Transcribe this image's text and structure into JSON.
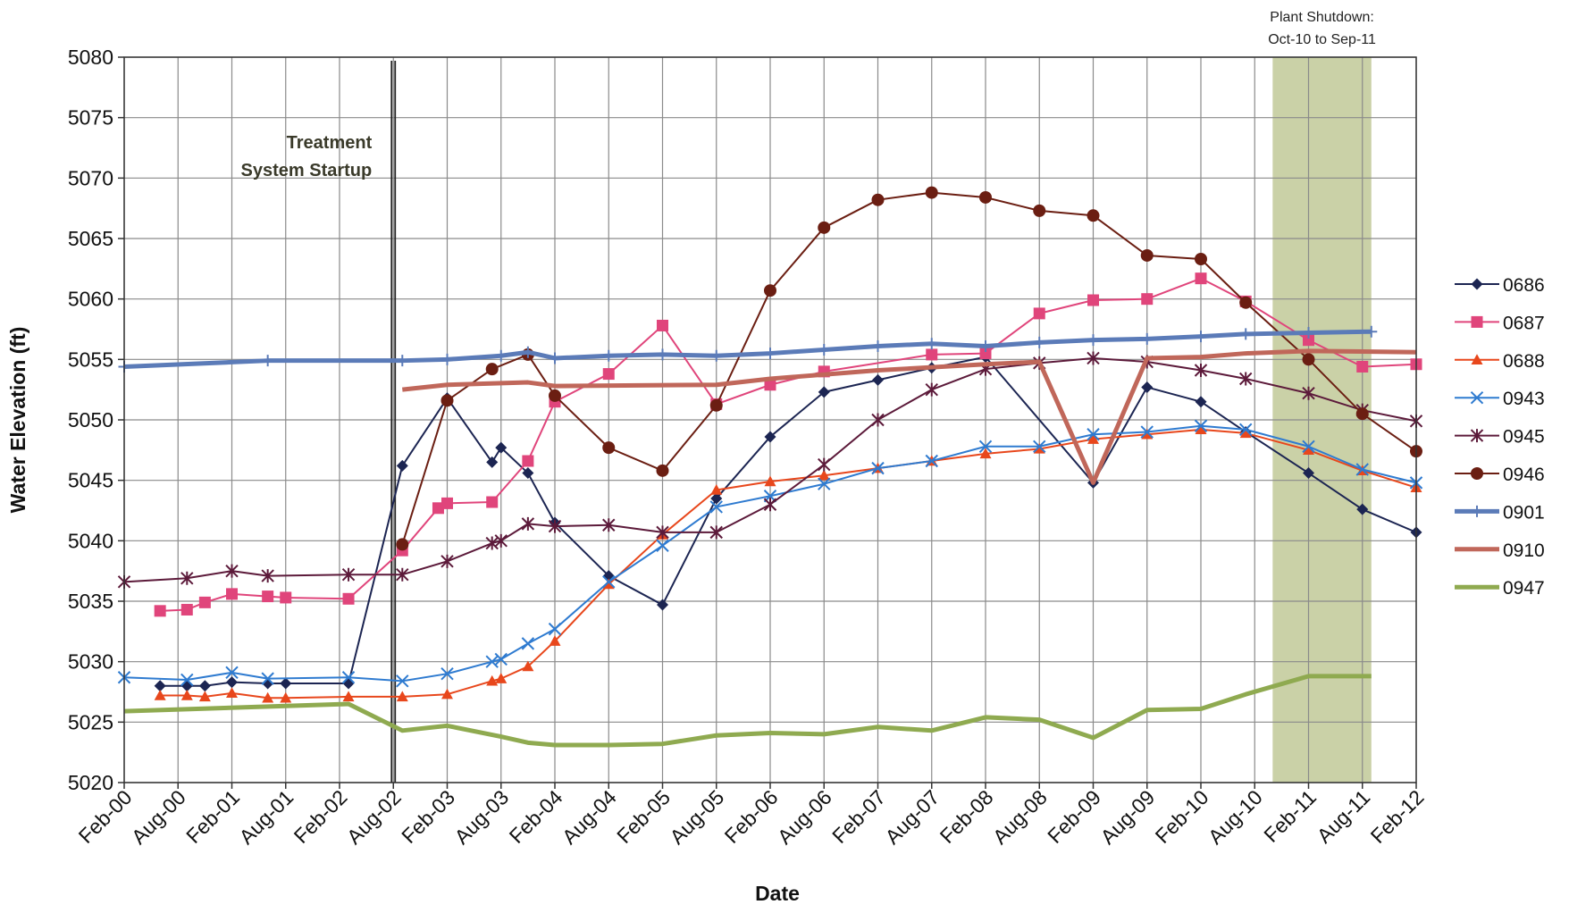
{
  "chart_data": {
    "type": "line",
    "x_label": "Date",
    "y_label": "Water Elevation (ft)",
    "xlim": [
      "2000-02",
      "2012-02"
    ],
    "ylim": [
      5020,
      5080
    ],
    "yticks": [
      5020,
      5025,
      5030,
      5035,
      5040,
      5045,
      5050,
      5055,
      5060,
      5065,
      5070,
      5075,
      5080
    ],
    "xticks": [
      {
        "value": "2000-02",
        "label": "Feb-00"
      },
      {
        "value": "2000-08",
        "label": "Aug-00"
      },
      {
        "value": "2001-02",
        "label": "Feb-01"
      },
      {
        "value": "2001-08",
        "label": "Aug-01"
      },
      {
        "value": "2002-02",
        "label": "Feb-02"
      },
      {
        "value": "2002-08",
        "label": "Aug-02"
      },
      {
        "value": "2003-02",
        "label": "Feb-03"
      },
      {
        "value": "2003-08",
        "label": "Aug-03"
      },
      {
        "value": "2004-02",
        "label": "Feb-04"
      },
      {
        "value": "2004-08",
        "label": "Aug-04"
      },
      {
        "value": "2005-02",
        "label": "Feb-05"
      },
      {
        "value": "2005-08",
        "label": "Aug-05"
      },
      {
        "value": "2006-02",
        "label": "Feb-06"
      },
      {
        "value": "2006-08",
        "label": "Aug-06"
      },
      {
        "value": "2007-02",
        "label": "Feb-07"
      },
      {
        "value": "2007-08",
        "label": "Aug-07"
      },
      {
        "value": "2008-02",
        "label": "Feb-08"
      },
      {
        "value": "2008-08",
        "label": "Aug-08"
      },
      {
        "value": "2009-02",
        "label": "Feb-09"
      },
      {
        "value": "2009-08",
        "label": "Aug-09"
      },
      {
        "value": "2010-02",
        "label": "Feb-10"
      },
      {
        "value": "2010-08",
        "label": "Aug-10"
      },
      {
        "value": "2011-02",
        "label": "Feb-11"
      },
      {
        "value": "2011-08",
        "label": "Aug-11"
      },
      {
        "value": "2012-02",
        "label": "Feb-12"
      }
    ],
    "grid": true,
    "legend": "right",
    "annotations": [
      {
        "x": "2002-08",
        "text": [
          "Treatment",
          "System Startup"
        ]
      }
    ],
    "shaded_region": {
      "x": [
        "2010-10",
        "2011-09"
      ],
      "text": [
        "Plant Shutdown:",
        "Oct-10 to Sep-11"
      ],
      "color": "#b8c28a"
    },
    "series": [
      {
        "name": "0686",
        "color": "#1c2552",
        "marker": "diamond",
        "width": 2,
        "x": [
          "2000-06",
          "2000-09",
          "2000-11",
          "2001-02",
          "2001-06",
          "2001-08",
          "2002-03",
          "2002-09",
          "2003-02",
          "2003-07",
          "2003-08",
          "2003-11",
          "2004-02",
          "2004-08",
          "2005-02",
          "2005-08",
          "2006-02",
          "2006-08",
          "2007-02",
          "2007-08",
          "2008-02",
          "2009-02",
          "2009-08",
          "2010-02",
          "2010-07",
          "2011-02",
          "2011-08",
          "2012-02"
        ],
        "values": [
          5028,
          5028,
          5028,
          5028.3,
          5028.2,
          5028.2,
          5028.2,
          5046.2,
          5051.8,
          5046.5,
          5047.7,
          5045.6,
          5041.5,
          5037.1,
          5034.7,
          5043.5,
          5048.6,
          5052.3,
          5053.3,
          5054.3,
          5055.2,
          5044.8,
          5052.7,
          5051.5,
          5049,
          5045.6,
          5042.6,
          5040.7
        ]
      },
      {
        "name": "0687",
        "color": "#e0457b",
        "marker": "square",
        "width": 2,
        "x": [
          "2000-06",
          "2000-09",
          "2000-11",
          "2001-02",
          "2001-06",
          "2001-08",
          "2002-03",
          "2002-09",
          "2003-01",
          "2003-02",
          "2003-07",
          "2003-11",
          "2004-02",
          "2004-08",
          "2005-02",
          "2005-08",
          "2006-02",
          "2006-08",
          "2007-08",
          "2008-02",
          "2008-08",
          "2009-02",
          "2009-08",
          "2010-02",
          "2010-07",
          "2011-02",
          "2011-08",
          "2012-02"
        ],
        "values": [
          5034.2,
          5034.3,
          5034.9,
          5035.6,
          5035.4,
          5035.3,
          5035.2,
          5039.2,
          5042.7,
          5043.1,
          5043.2,
          5046.6,
          5051.5,
          5053.8,
          5057.8,
          5051.3,
          5052.9,
          5054,
          5055.4,
          5055.5,
          5058.8,
          5059.9,
          5060,
          5061.7,
          5059.8,
          5056.6,
          5054.4,
          5054.6
        ]
      },
      {
        "name": "0688",
        "color": "#e8471c",
        "marker": "triangle",
        "width": 2,
        "x": [
          "2000-06",
          "2000-09",
          "2000-11",
          "2001-02",
          "2001-06",
          "2001-08",
          "2002-03",
          "2002-09",
          "2003-02",
          "2003-07",
          "2003-08",
          "2003-11",
          "2004-02",
          "2004-08",
          "2005-02",
          "2005-08",
          "2006-02",
          "2006-08",
          "2007-02",
          "2007-08",
          "2008-02",
          "2008-08",
          "2009-02",
          "2009-08",
          "2010-02",
          "2010-07",
          "2011-02",
          "2011-08",
          "2012-02"
        ],
        "values": [
          5027.2,
          5027.2,
          5027.1,
          5027.4,
          5027,
          5027,
          5027.1,
          5027.1,
          5027.3,
          5028.4,
          5028.6,
          5029.6,
          5031.7,
          5036.4,
          5040.5,
          5044.2,
          5044.9,
          5045.4,
          5046,
          5046.6,
          5047.2,
          5047.6,
          5048.4,
          5048.8,
          5049.2,
          5048.9,
          5047.5,
          5045.8,
          5044.4
        ]
      },
      {
        "name": "0943",
        "color": "#2f7bd0",
        "marker": "x",
        "width": 2,
        "x": [
          "2000-02",
          "2000-09",
          "2001-02",
          "2001-06",
          "2002-03",
          "2002-09",
          "2003-02",
          "2003-07",
          "2003-08",
          "2003-11",
          "2004-02",
          "2004-08",
          "2005-02",
          "2005-08",
          "2006-02",
          "2006-08",
          "2007-02",
          "2007-08",
          "2008-02",
          "2008-08",
          "2009-02",
          "2009-08",
          "2010-02",
          "2010-07",
          "2011-02",
          "2011-08",
          "2012-02"
        ],
        "values": [
          5028.7,
          5028.5,
          5029.1,
          5028.6,
          5028.7,
          5028.4,
          5029,
          5030,
          5030.2,
          5031.5,
          5032.7,
          5036.6,
          5039.6,
          5042.8,
          5043.7,
          5044.7,
          5046,
          5046.6,
          5047.8,
          5047.8,
          5048.8,
          5049,
          5049.5,
          5049.2,
          5047.8,
          5045.9,
          5044.8
        ]
      },
      {
        "name": "0945",
        "color": "#5c1a3a",
        "marker": "star",
        "width": 2,
        "x": [
          "2000-02",
          "2000-09",
          "2001-02",
          "2001-06",
          "2002-03",
          "2002-09",
          "2003-02",
          "2003-07",
          "2003-08",
          "2003-11",
          "2004-02",
          "2004-08",
          "2005-02",
          "2005-08",
          "2006-02",
          "2006-08",
          "2007-02",
          "2007-08",
          "2008-02",
          "2008-08",
          "2009-02",
          "2009-08",
          "2010-02",
          "2010-07",
          "2011-02",
          "2011-08",
          "2012-02"
        ],
        "values": [
          5036.6,
          5036.9,
          5037.5,
          5037.1,
          5037.2,
          5037.2,
          5038.3,
          5039.8,
          5040,
          5041.4,
          5041.2,
          5041.3,
          5040.7,
          5040.7,
          5043,
          5046.3,
          5050,
          5052.5,
          5054.2,
          5054.7,
          5055.1,
          5054.8,
          5054.1,
          5053.4,
          5052.2,
          5050.8,
          5049.9
        ]
      },
      {
        "name": "0946",
        "color": "#6b1e12",
        "marker": "circle",
        "width": 2,
        "x": [
          "2002-09",
          "2003-02",
          "2003-07",
          "2003-11",
          "2004-02",
          "2004-08",
          "2005-02",
          "2005-08",
          "2006-02",
          "2006-08",
          "2007-02",
          "2007-08",
          "2008-02",
          "2008-08",
          "2009-02",
          "2009-08",
          "2010-02",
          "2010-07",
          "2011-02",
          "2011-08",
          "2012-02"
        ],
        "values": [
          5039.7,
          5051.6,
          5054.2,
          5055.4,
          5052,
          5047.7,
          5045.8,
          5051.2,
          5060.7,
          5065.9,
          5068.2,
          5068.8,
          5068.4,
          5067.3,
          5066.9,
          5063.6,
          5063.3,
          5059.7,
          5055,
          5050.5,
          5047.4
        ]
      },
      {
        "name": "0901",
        "color": "#5b7bb8",
        "marker": "plus",
        "width": 5,
        "x": [
          "2000-02",
          "2001-06",
          "2002-09",
          "2003-02",
          "2003-08",
          "2003-11",
          "2004-02",
          "2004-08",
          "2005-02",
          "2005-08",
          "2006-02",
          "2006-08",
          "2007-02",
          "2007-08",
          "2008-02",
          "2008-08",
          "2009-02",
          "2009-08",
          "2010-02",
          "2010-07",
          "2011-02",
          "2011-09"
        ],
        "values": [
          5054.4,
          5054.9,
          5054.9,
          5055,
          5055.3,
          5055.6,
          5055.1,
          5055.3,
          5055.4,
          5055.3,
          5055.5,
          5055.8,
          5056.1,
          5056.3,
          5056.1,
          5056.4,
          5056.6,
          5056.7,
          5056.9,
          5057.1,
          5057.2,
          5057.3
        ]
      },
      {
        "name": "0910",
        "color": "#c0675a",
        "marker": "none",
        "width": 5,
        "x": [
          "2002-09",
          "2003-02",
          "2003-11",
          "2004-02",
          "2005-08",
          "2006-02",
          "2007-02",
          "2008-02",
          "2008-08",
          "2009-02",
          "2009-08",
          "2010-02",
          "2010-07",
          "2011-02",
          "2012-02"
        ],
        "values": [
          5052.5,
          5052.9,
          5053.1,
          5052.8,
          5052.9,
          5053.4,
          5054.1,
          5054.6,
          5054.8,
          5044.8,
          5055.1,
          5055.2,
          5055.5,
          5055.7,
          5055.6
        ]
      },
      {
        "name": "0947",
        "color": "#8faa50",
        "marker": "none",
        "width": 5,
        "x": [
          "2000-02",
          "2002-03",
          "2002-09",
          "2003-02",
          "2003-08",
          "2003-11",
          "2004-02",
          "2004-08",
          "2005-02",
          "2005-08",
          "2006-02",
          "2006-08",
          "2007-02",
          "2007-08",
          "2008-02",
          "2008-08",
          "2009-02",
          "2009-08",
          "2010-02",
          "2010-07",
          "2011-02",
          "2011-09"
        ],
        "values": [
          5025.9,
          5026.5,
          5024.3,
          5024.7,
          5023.8,
          5023.3,
          5023.1,
          5023.1,
          5023.2,
          5023.9,
          5024.1,
          5024,
          5024.6,
          5024.3,
          5025.4,
          5025.2,
          5023.7,
          5026,
          5026.1,
          5027.3,
          5028.8,
          5028.8
        ]
      }
    ]
  }
}
